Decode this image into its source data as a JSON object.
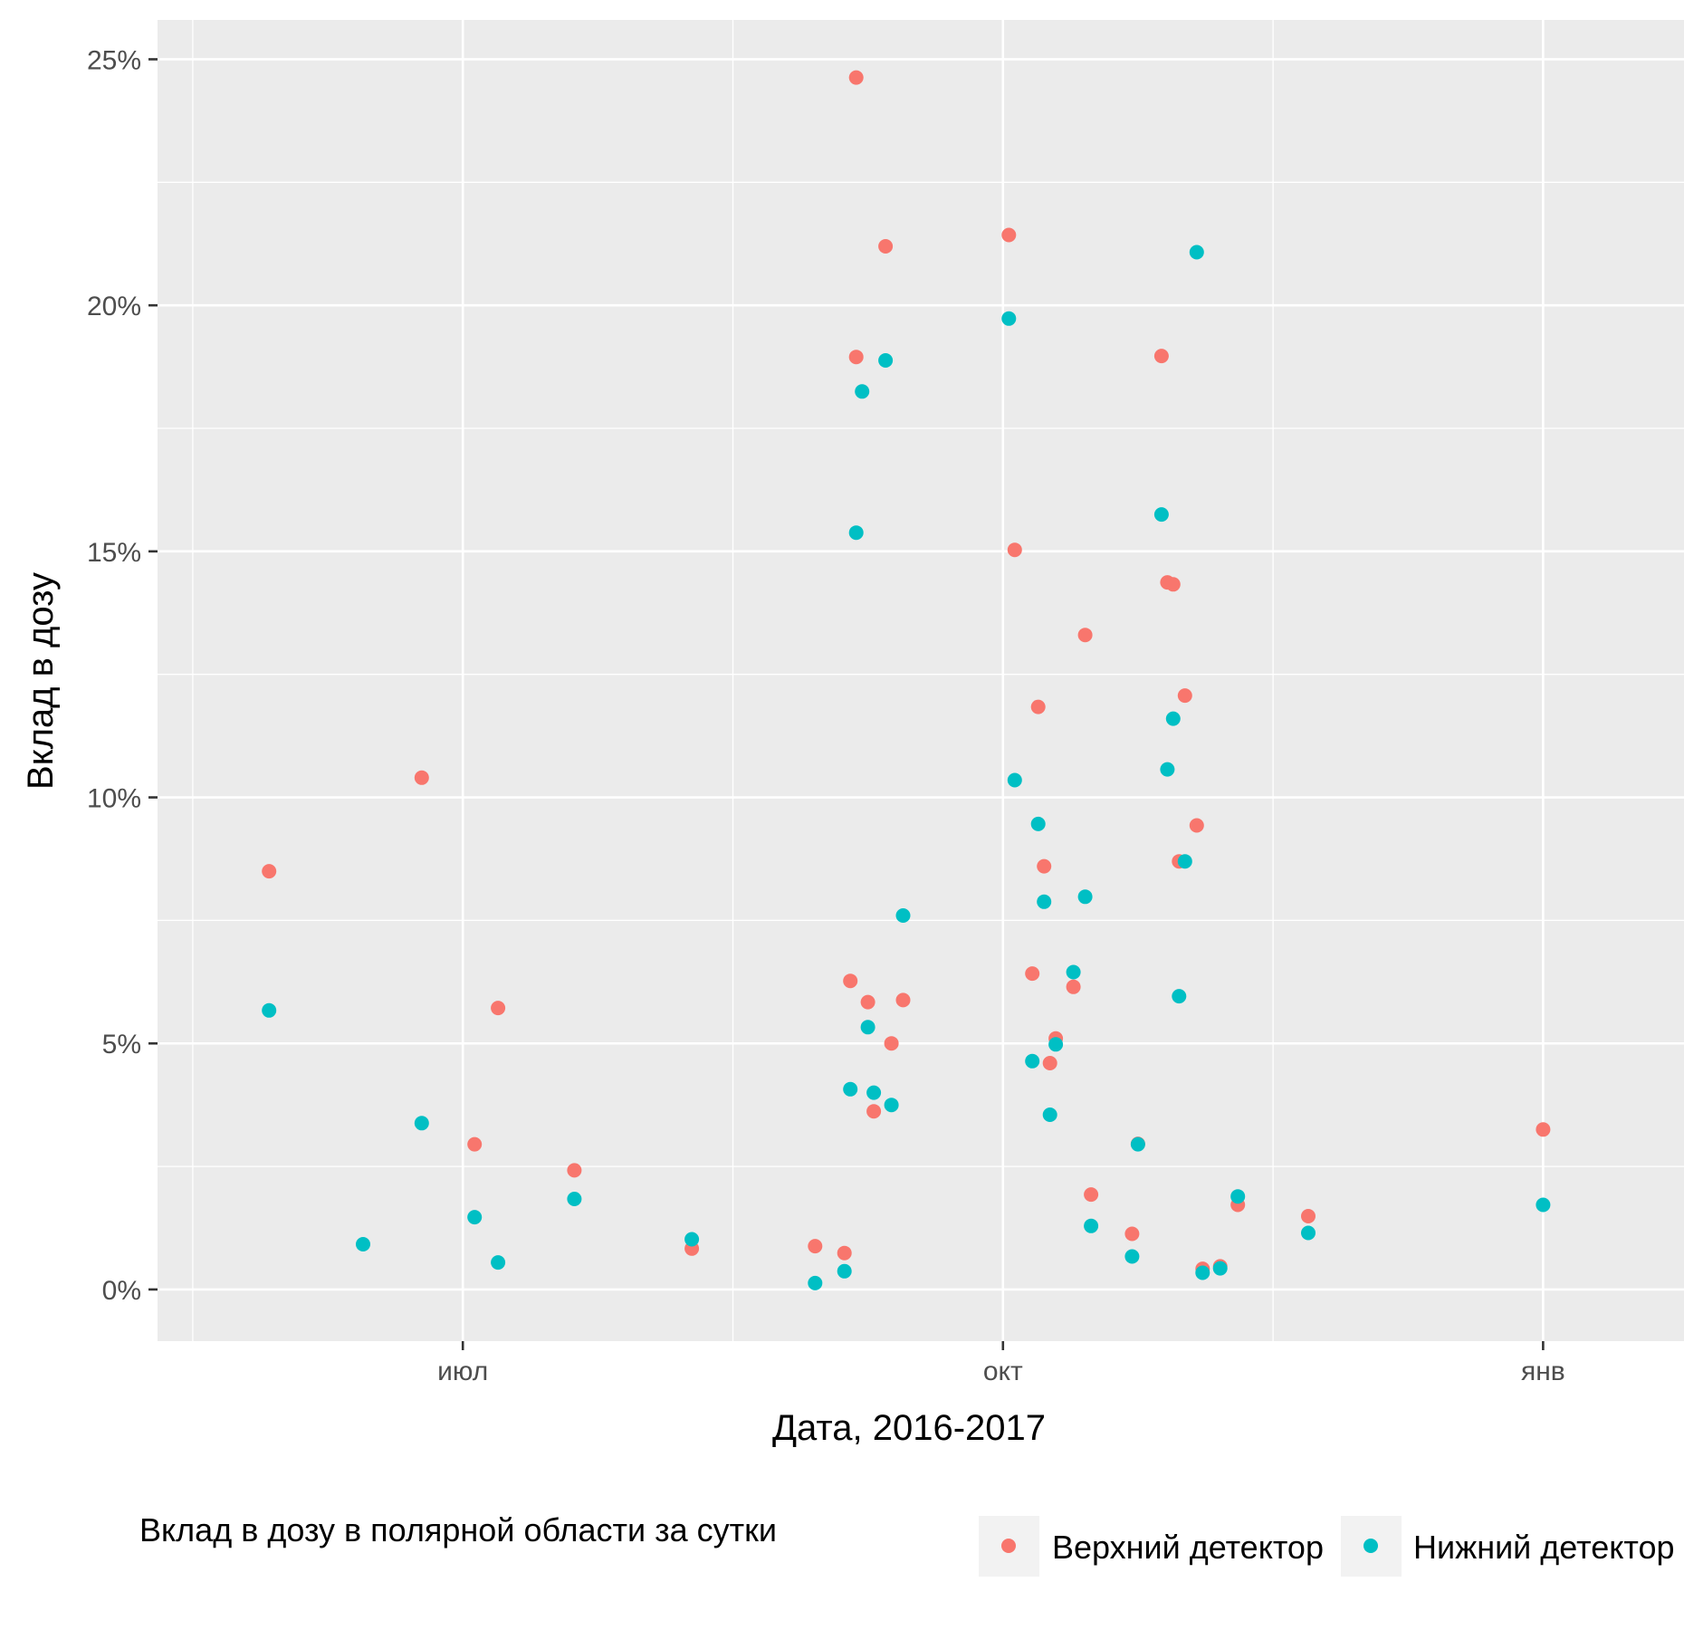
{
  "chart_data": {
    "type": "scatter",
    "xlabel": "Дата, 2016-2017",
    "ylabel": "Вклад в дозу",
    "x_ticks": [
      {
        "date": "2016-07-01",
        "label": "июл"
      },
      {
        "date": "2016-10-01",
        "label": "окт"
      },
      {
        "date": "2017-01-01",
        "label": "янв"
      }
    ],
    "xlim": [
      "2016-05-10",
      "2017-01-25"
    ],
    "y_ticks": [
      {
        "value": 0,
        "label": "0%"
      },
      {
        "value": 5,
        "label": "5%"
      },
      {
        "value": 10,
        "label": "10%"
      },
      {
        "value": 15,
        "label": "15%"
      },
      {
        "value": 20,
        "label": "20%"
      },
      {
        "value": 25,
        "label": "25%"
      }
    ],
    "ylim": [
      -1.05,
      25.8
    ],
    "grid": true,
    "legend": {
      "title": "Вклад в дозу в полярной области за сутки",
      "position": "bottom"
    },
    "series": [
      {
        "name": "Верхний детектор",
        "color": "#F8766D",
        "points": [
          [
            "2016-05-29",
            8.5
          ],
          [
            "2016-06-24",
            10.4
          ],
          [
            "2016-07-03",
            2.95
          ],
          [
            "2016-07-07",
            5.72
          ],
          [
            "2016-07-20",
            2.42
          ],
          [
            "2016-08-09",
            0.83
          ],
          [
            "2016-08-30",
            0.88
          ],
          [
            "2016-09-04",
            0.74
          ],
          [
            "2016-09-05",
            6.27
          ],
          [
            "2016-09-06",
            18.95
          ],
          [
            "2016-09-06",
            24.63
          ],
          [
            "2016-09-08",
            5.84
          ],
          [
            "2016-09-09",
            3.62
          ],
          [
            "2016-09-11",
            21.2
          ],
          [
            "2016-09-12",
            5.0
          ],
          [
            "2016-09-14",
            5.88
          ],
          [
            "2016-10-02",
            21.43
          ],
          [
            "2016-10-03",
            15.03
          ],
          [
            "2016-10-06",
            6.42
          ],
          [
            "2016-10-07",
            11.84
          ],
          [
            "2016-10-08",
            8.6
          ],
          [
            "2016-10-09",
            4.6
          ],
          [
            "2016-10-10",
            5.1
          ],
          [
            "2016-10-13",
            6.15
          ],
          [
            "2016-10-15",
            13.3
          ],
          [
            "2016-10-16",
            1.93
          ],
          [
            "2016-10-23",
            1.13
          ],
          [
            "2016-10-24",
            2.96
          ],
          [
            "2016-10-28",
            18.97
          ],
          [
            "2016-10-29",
            14.37
          ],
          [
            "2016-10-30",
            14.33
          ],
          [
            "2016-10-31",
            8.7
          ],
          [
            "2016-11-01",
            12.07
          ],
          [
            "2016-11-03",
            9.43
          ],
          [
            "2016-11-04",
            0.42
          ],
          [
            "2016-11-07",
            0.47
          ],
          [
            "2016-11-10",
            1.72
          ],
          [
            "2016-11-22",
            1.49
          ],
          [
            "2017-01-01",
            3.25
          ]
        ]
      },
      {
        "name": "Нижний детектор",
        "color": "#00BFC4",
        "points": [
          [
            "2016-05-29",
            5.67
          ],
          [
            "2016-06-14",
            0.92
          ],
          [
            "2016-06-24",
            3.38
          ],
          [
            "2016-07-03",
            1.47
          ],
          [
            "2016-07-07",
            0.55
          ],
          [
            "2016-07-20",
            1.84
          ],
          [
            "2016-08-09",
            1.02
          ],
          [
            "2016-08-30",
            0.13
          ],
          [
            "2016-09-04",
            0.37
          ],
          [
            "2016-09-05",
            4.07
          ],
          [
            "2016-09-06",
            15.38
          ],
          [
            "2016-09-07",
            18.25
          ],
          [
            "2016-09-08",
            5.33
          ],
          [
            "2016-09-09",
            4.0
          ],
          [
            "2016-09-11",
            18.88
          ],
          [
            "2016-09-12",
            3.75
          ],
          [
            "2016-09-14",
            7.6
          ],
          [
            "2016-10-02",
            19.73
          ],
          [
            "2016-10-03",
            10.35
          ],
          [
            "2016-10-06",
            4.64
          ],
          [
            "2016-10-07",
            9.46
          ],
          [
            "2016-10-08",
            7.88
          ],
          [
            "2016-10-09",
            3.55
          ],
          [
            "2016-10-10",
            4.98
          ],
          [
            "2016-10-13",
            6.45
          ],
          [
            "2016-10-15",
            7.98
          ],
          [
            "2016-10-16",
            1.29
          ],
          [
            "2016-10-23",
            0.67
          ],
          [
            "2016-10-24",
            2.95
          ],
          [
            "2016-10-28",
            15.75
          ],
          [
            "2016-10-29",
            10.57
          ],
          [
            "2016-10-30",
            11.6
          ],
          [
            "2016-10-31",
            5.96
          ],
          [
            "2016-11-01",
            8.7
          ],
          [
            "2016-11-03",
            21.08
          ],
          [
            "2016-11-04",
            0.34
          ],
          [
            "2016-11-07",
            0.43
          ],
          [
            "2016-11-10",
            1.89
          ],
          [
            "2016-11-22",
            1.15
          ],
          [
            "2017-01-01",
            1.72
          ]
        ]
      }
    ]
  }
}
